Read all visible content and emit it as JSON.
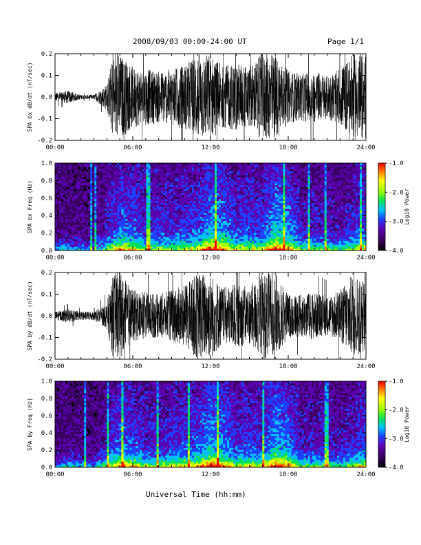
{
  "header": {
    "title": "2008/09/03  00:00-24:00 UT",
    "page": "Page 1/1"
  },
  "footer": {
    "xlabel": "Universal Time (hh:mm)"
  },
  "colors": {
    "trace": "#000000",
    "spectrogram_background": "#1a0030",
    "colorbar": [
      "#000000",
      "#3a0060",
      "#5a00b0",
      "#2040ff",
      "#00c0ff",
      "#00e060",
      "#a0ff00",
      "#ffff00",
      "#ff8000",
      "#ff0000"
    ]
  },
  "chart_data": [
    {
      "id": "bx-waveform",
      "type": "line",
      "title": "",
      "xlabel": "",
      "ylabel": "SPA bx dB/dt (nT/sec)",
      "xlim": [
        0,
        24
      ],
      "ylim": [
        -0.2,
        0.2
      ],
      "xticks": [
        "00:00",
        "06:00",
        "12:00",
        "18:00",
        "24:00"
      ],
      "yticks": [
        "-0.2",
        "-0.1",
        "0.0",
        "0.1",
        "0.2"
      ],
      "x": [
        0,
        1,
        2,
        3,
        4,
        4.5,
        5,
        6,
        7,
        8,
        9,
        10,
        11,
        12,
        13,
        14,
        15,
        16,
        17,
        18,
        19,
        20,
        21,
        22,
        23,
        24
      ],
      "envelope": [
        0.02,
        0.03,
        0.01,
        0.01,
        0.06,
        0.2,
        0.2,
        0.14,
        0.13,
        0.12,
        0.13,
        0.15,
        0.2,
        0.2,
        0.14,
        0.16,
        0.14,
        0.2,
        0.2,
        0.12,
        0.11,
        0.12,
        0.1,
        0.13,
        0.2,
        0.2
      ]
    },
    {
      "id": "bx-spectrogram",
      "type": "heatmap",
      "title": "",
      "xlabel": "",
      "ylabel": "SPA bx Freq (Hz)",
      "xlim": [
        0,
        24
      ],
      "ylim": [
        0.0,
        1.0
      ],
      "xticks": [
        "00:00",
        "06:00",
        "12:00",
        "18:00",
        "24:00"
      ],
      "yticks": [
        "0.0",
        "0.2",
        "0.4",
        "0.6",
        "0.8",
        "1.0"
      ],
      "colorbar_label": "Log10 Power",
      "colorbar_ticks": [
        "-1.0",
        "-2.0",
        "-3.0",
        "-4.0"
      ],
      "colorbar_range": [
        -4.0,
        -1.0
      ],
      "activity": [
        0.1,
        0.15,
        0.1,
        0.08,
        0.3,
        0.55,
        0.5,
        0.35,
        0.35,
        0.35,
        0.4,
        0.45,
        0.7,
        0.6,
        0.4,
        0.45,
        0.4,
        0.75,
        0.6,
        0.3,
        0.3,
        0.3,
        0.25,
        0.35,
        0.5
      ]
    },
    {
      "id": "by-waveform",
      "type": "line",
      "title": "",
      "xlabel": "",
      "ylabel": "SPA by dB/dt (nT/sec)",
      "xlim": [
        0,
        24
      ],
      "ylim": [
        -0.2,
        0.2
      ],
      "xticks": [
        "00:00",
        "06:00",
        "12:00",
        "18:00",
        "24:00"
      ],
      "yticks": [
        "-0.2",
        "-0.1",
        "0.0",
        "0.1",
        "0.2"
      ],
      "x": [
        0,
        1,
        2,
        3,
        4,
        4.5,
        5,
        6,
        7,
        8,
        9,
        10,
        11,
        12,
        13,
        14,
        15,
        16,
        17,
        18,
        19,
        20,
        21,
        22,
        23,
        24
      ],
      "envelope": [
        0.02,
        0.03,
        0.02,
        0.02,
        0.06,
        0.2,
        0.2,
        0.12,
        0.11,
        0.1,
        0.12,
        0.14,
        0.2,
        0.2,
        0.13,
        0.15,
        0.13,
        0.2,
        0.2,
        0.1,
        0.1,
        0.11,
        0.09,
        0.12,
        0.2,
        0.16
      ]
    },
    {
      "id": "by-spectrogram",
      "type": "heatmap",
      "title": "",
      "xlabel": "",
      "ylabel": "SPA by Freq (Hz)",
      "xlim": [
        0,
        24
      ],
      "ylim": [
        0.0,
        1.0
      ],
      "xticks": [
        "00:00",
        "06:00",
        "12:00",
        "18:00",
        "24:00"
      ],
      "yticks": [
        "0.0",
        "0.2",
        "0.4",
        "0.6",
        "0.8",
        "1.0"
      ],
      "colorbar_label": "Log10 Power",
      "colorbar_ticks": [
        "-1.0",
        "-2.0",
        "-3.0",
        "-4.0"
      ],
      "colorbar_range": [
        -4.0,
        -1.0
      ],
      "activity": [
        0.1,
        0.15,
        0.1,
        0.08,
        0.3,
        0.55,
        0.5,
        0.35,
        0.35,
        0.4,
        0.45,
        0.5,
        0.75,
        0.6,
        0.4,
        0.45,
        0.4,
        0.75,
        0.6,
        0.3,
        0.3,
        0.3,
        0.25,
        0.35,
        0.5
      ]
    }
  ]
}
